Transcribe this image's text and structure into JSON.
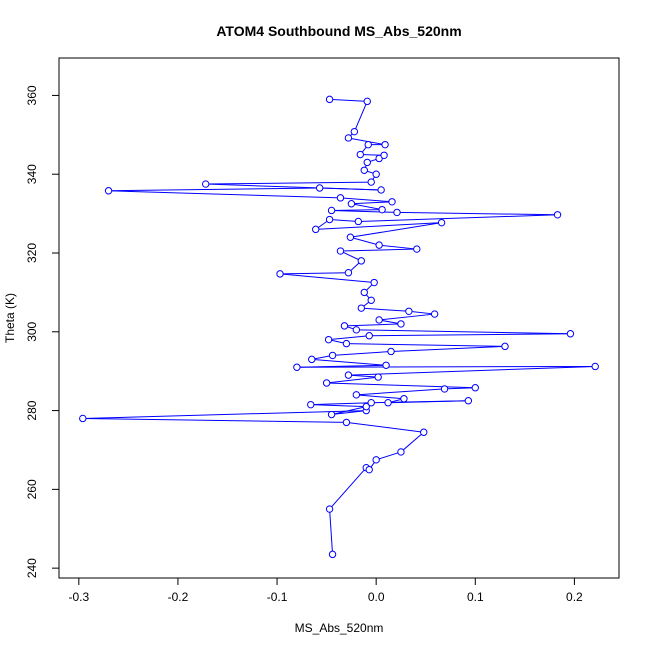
{
  "chart_data": {
    "type": "line",
    "title": "ATOM4 Southbound MS_Abs_520nm",
    "xlabel": "MS_Abs_520nm",
    "ylabel": "Theta (K)",
    "xlim": [
      -0.32,
      0.245
    ],
    "ylim": [
      237.5,
      369.5
    ],
    "xticks": [
      -0.3,
      -0.2,
      -0.1,
      0.0,
      0.1,
      0.2
    ],
    "xtick_labels": [
      "-0.3",
      "-0.2",
      "-0.1",
      "0.0",
      "0.1",
      "0.2"
    ],
    "yticks": [
      240,
      260,
      280,
      300,
      320,
      340,
      360
    ],
    "ytick_labels": [
      "240",
      "260",
      "280",
      "300",
      "320",
      "340",
      "360"
    ],
    "marker": "open-circle",
    "grid": false,
    "legend": "none",
    "colors": {
      "series": "#0000ff",
      "axis": "#000000",
      "background": "#ffffff"
    },
    "series": [
      {
        "values_xy": [
          [
            -0.044,
            243.5
          ],
          [
            -0.047,
            255.0
          ],
          [
            -0.01,
            265.5
          ],
          [
            -0.007,
            265.0
          ],
          [
            0.0,
            267.5
          ],
          [
            0.025,
            269.5
          ],
          [
            0.048,
            274.5
          ],
          [
            -0.03,
            277.0
          ],
          [
            -0.296,
            278.0
          ],
          [
            -0.01,
            280.0
          ],
          [
            -0.045,
            279.0
          ],
          [
            -0.01,
            281.0
          ],
          [
            -0.066,
            281.5
          ],
          [
            -0.005,
            282.0
          ],
          [
            0.093,
            282.5
          ],
          [
            0.012,
            282.0
          ],
          [
            0.028,
            283.0
          ],
          [
            -0.02,
            284.0
          ],
          [
            0.069,
            285.5
          ],
          [
            0.1,
            285.8
          ],
          [
            -0.05,
            287.0
          ],
          [
            0.002,
            288.5
          ],
          [
            -0.028,
            289.0
          ],
          [
            0.221,
            291.2
          ],
          [
            -0.08,
            291.0
          ],
          [
            0.01,
            291.5
          ],
          [
            -0.065,
            293.0
          ],
          [
            -0.044,
            294.0
          ],
          [
            0.015,
            295.0
          ],
          [
            0.13,
            296.3
          ],
          [
            -0.03,
            297.0
          ],
          [
            -0.048,
            298.0
          ],
          [
            -0.007,
            299.0
          ],
          [
            0.196,
            299.5
          ],
          [
            -0.02,
            300.5
          ],
          [
            -0.032,
            301.5
          ],
          [
            0.025,
            302.0
          ],
          [
            0.003,
            303.0
          ],
          [
            0.059,
            304.5
          ],
          [
            0.033,
            305.2
          ],
          [
            -0.015,
            306.0
          ],
          [
            -0.005,
            308.0
          ],
          [
            -0.012,
            310.0
          ],
          [
            -0.002,
            312.5
          ],
          [
            -0.097,
            314.7
          ],
          [
            -0.028,
            315.0
          ],
          [
            -0.015,
            318.0
          ],
          [
            -0.036,
            320.5
          ],
          [
            0.041,
            321.0
          ],
          [
            0.003,
            322.0
          ],
          [
            -0.026,
            324.0
          ],
          [
            0.066,
            327.7
          ],
          [
            -0.061,
            326.0
          ],
          [
            -0.047,
            328.5
          ],
          [
            -0.018,
            328.0
          ],
          [
            0.183,
            329.7
          ],
          [
            0.021,
            330.3
          ],
          [
            -0.045,
            330.8
          ],
          [
            0.006,
            331.0
          ],
          [
            -0.025,
            332.5
          ],
          [
            0.016,
            333.0
          ],
          [
            -0.036,
            334.0
          ],
          [
            -0.27,
            335.8
          ],
          [
            -0.057,
            336.5
          ],
          [
            0.005,
            336.0
          ],
          [
            -0.172,
            337.5
          ],
          [
            -0.005,
            338.0
          ],
          [
            0.0,
            340.0
          ],
          [
            -0.012,
            341.0
          ],
          [
            -0.009,
            343.0
          ],
          [
            0.003,
            344.0
          ],
          [
            0.008,
            344.8
          ],
          [
            -0.016,
            345.0
          ],
          [
            -0.008,
            347.5
          ],
          [
            0.009,
            347.5
          ],
          [
            -0.028,
            349.2
          ],
          [
            -0.022,
            350.8
          ],
          [
            -0.009,
            358.5
          ],
          [
            -0.047,
            359.0
          ]
        ]
      }
    ],
    "segment_order": [
      0,
      1,
      2,
      3,
      4,
      5,
      6,
      7,
      8,
      9,
      10,
      11,
      12,
      13,
      14,
      15,
      16,
      17,
      18,
      19,
      20,
      21,
      22,
      23,
      24,
      25,
      26,
      27,
      28,
      29,
      30,
      31,
      32,
      33,
      34,
      35,
      36,
      37,
      38,
      39,
      40,
      41,
      42,
      43,
      44,
      45,
      46,
      47,
      48,
      49,
      50,
      51,
      52,
      53,
      54,
      55,
      56,
      57,
      58,
      59,
      60,
      61,
      62,
      63,
      64,
      65,
      66,
      67,
      68,
      69,
      70,
      71,
      72,
      73,
      74,
      75,
      76,
      77,
      78
    ]
  }
}
